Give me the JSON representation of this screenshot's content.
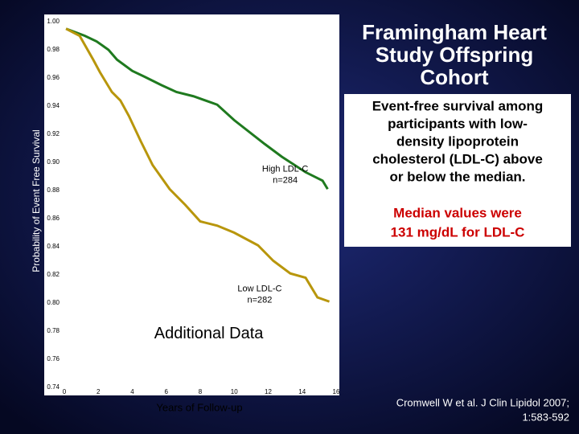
{
  "chart_data": {
    "type": "line",
    "y_label": "Probability of Event Free Survival",
    "x_label": "Years of Follow-up",
    "xlim": [
      0,
      16
    ],
    "xticks": [
      0,
      2,
      4,
      6,
      8,
      10,
      12,
      14,
      16
    ],
    "ylim": [
      0.74,
      1.0
    ],
    "yticks": [
      0.74,
      0.76,
      0.78,
      {
        "value": 0.8,
        "label": "0.80"
      },
      0.82,
      0.84,
      0.86,
      0.88,
      {
        "value": 0.9,
        "label": "0.90"
      },
      0.92,
      0.94,
      0.96,
      0.98,
      {
        "value": 1.0,
        "label": "1.00"
      }
    ],
    "grid": false,
    "series": [
      {
        "color": "#1f7a1f",
        "x": [
          0.1,
          1.2,
          1.9,
          2.6,
          3.1,
          4.0,
          4.7,
          5.7,
          6.6,
          7.6,
          9.0,
          10.0,
          11.8,
          12.8,
          14.2,
          15.2,
          15.5
        ],
        "values": [
          0.995,
          0.99,
          0.986,
          0.98,
          0.973,
          0.965,
          0.961,
          0.955,
          0.95,
          0.947,
          0.941,
          0.93,
          0.913,
          0.904,
          0.893,
          0.887,
          0.881
        ]
      },
      {
        "color": "#b8960c",
        "x": [
          0.1,
          0.9,
          1.7,
          2.1,
          2.8,
          3.3,
          3.8,
          4.5,
          5.2,
          6.2,
          7.1,
          8.0,
          9.0,
          10.0,
          11.4,
          12.3,
          13.3,
          14.2,
          14.9,
          15.6
        ],
        "values": [
          0.995,
          0.99,
          0.973,
          0.964,
          0.95,
          0.944,
          0.933,
          0.915,
          0.898,
          0.881,
          0.87,
          0.858,
          0.855,
          0.85,
          0.841,
          0.83,
          0.821,
          0.818,
          0.804,
          0.801
        ]
      }
    ],
    "annotations": [
      {
        "lines": [
          "High LDL-C",
          "n=284"
        ],
        "x": 13.0,
        "y": 0.895
      },
      {
        "lines": [
          "Low LDL-C",
          "n=282"
        ],
        "x": 11.5,
        "y": 0.81
      },
      {
        "lines": [
          "Additional Data"
        ],
        "x": 8.5,
        "y": 0.778
      }
    ]
  },
  "slide": {
    "title": [
      "Framingham Heart",
      "Study Offspring",
      "Cohort"
    ],
    "description": [
      "Event-free survival among",
      "participants with low-",
      "density lipoprotein",
      "cholesterol (LDL-C) above",
      "or below the median."
    ],
    "median_note": [
      "Median values were",
      "131 mg/dL for LDL-C"
    ],
    "citation": [
      "Cromwell W et al. J Clin Lipidol 2007;",
      "1:583-592"
    ]
  }
}
